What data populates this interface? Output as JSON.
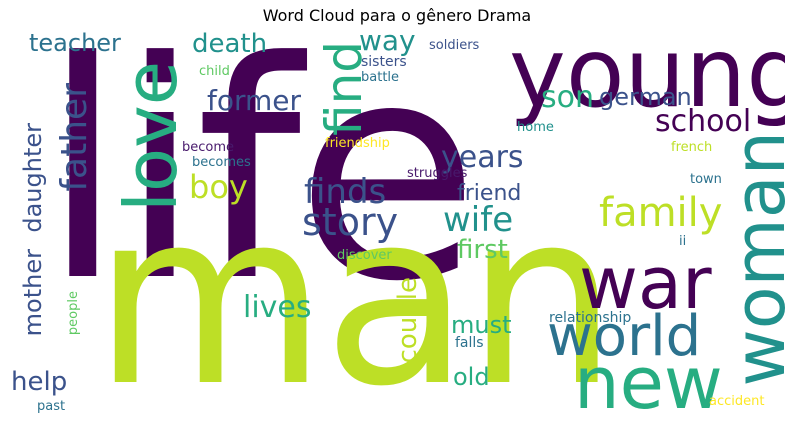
{
  "title": "Word Cloud para o gênero Drama",
  "palette": {
    "purple": "#440154",
    "dark_purple": "#481a6c",
    "indigo": "#3b528b",
    "blue": "#2c728e",
    "teal": "#21918c",
    "green": "#27ad81",
    "light_green": "#5ec962",
    "lime": "#bddf26",
    "yellow": "#fde725"
  },
  "words": {
    "life": "life",
    "man": "man",
    "young": "young",
    "woman": "woman",
    "love": "love",
    "war": "war",
    "new": "new",
    "world": "world",
    "find": "find",
    "father": "father",
    "family": "family",
    "story": "story",
    "finds": "finds",
    "wife": "wife",
    "years": "years",
    "boy": "boy",
    "former": "former",
    "school": "school",
    "son": "son",
    "death": "death",
    "way": "way",
    "teacher": "teacher",
    "german": "german",
    "friend": "friend",
    "first": "first",
    "lives": "lives",
    "couple": "couple",
    "must": "must",
    "old": "old",
    "help": "help",
    "mother": "mother",
    "daughter": "daughter",
    "relationship": "relationship",
    "falls": "falls",
    "soldiers": "soldiers",
    "sisters": "sisters",
    "battle": "battle",
    "child": "child",
    "home": "home",
    "friendship": "friendship",
    "become": "become",
    "becomes": "becomes",
    "struggles": "struggles",
    "french": "french",
    "town": "town",
    "discover": "discover",
    "ii": "ii",
    "people": "people",
    "past": "past",
    "accident": "accident"
  }
}
